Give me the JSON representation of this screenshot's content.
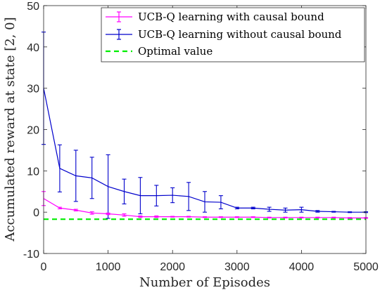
{
  "chart_data": {
    "type": "line",
    "xlabel": "Number of Episodes",
    "ylabel": "Accumulated reward at state [2, 0]",
    "xlim": [
      0,
      5000
    ],
    "ylim": [
      -10,
      50
    ],
    "xticks": [
      "0",
      "1000",
      "2000",
      "3000",
      "4000",
      "5000"
    ],
    "yticks": [
      "-10",
      "0",
      "10",
      "20",
      "30",
      "40",
      "50"
    ],
    "grid": false,
    "legend_position": "top-right",
    "series": [
      {
        "name": "UCB-Q learning with causal bound",
        "color": "#ff00ff",
        "error_bars": true,
        "x": [
          0,
          250,
          500,
          750,
          1000,
          1250,
          1500,
          1750,
          2000,
          2250,
          2500,
          2750,
          3000,
          3250,
          3500,
          3750,
          4000,
          4250,
          4500,
          4750,
          5000
        ],
        "y": [
          3.3,
          1.0,
          0.5,
          -0.2,
          -0.4,
          -0.7,
          -1.1,
          -1.1,
          -1.1,
          -1.1,
          -1.2,
          -1.2,
          -1.2,
          -1.2,
          -1.3,
          -1.3,
          -1.3,
          -1.3,
          -1.3,
          -1.4,
          -1.4
        ],
        "err": [
          1.7,
          0.2,
          0.2,
          0.3,
          0.2,
          0.3,
          0.2,
          0.2,
          0.1,
          0.1,
          0.1,
          0.1,
          0.1,
          0.1,
          0.1,
          0.1,
          0.1,
          0.1,
          0.1,
          0.1,
          0.1
        ]
      },
      {
        "name": "UCB-Q learning without causal bound",
        "color": "#0000cc",
        "error_bars": true,
        "x": [
          0,
          250,
          500,
          750,
          1000,
          1250,
          1500,
          1750,
          2000,
          2250,
          2500,
          2750,
          3000,
          3250,
          3500,
          3750,
          4000,
          4250,
          4500,
          4750,
          5000
        ],
        "y": [
          30.0,
          10.6,
          8.8,
          8.3,
          6.2,
          5.0,
          4.0,
          4.0,
          4.1,
          3.8,
          2.5,
          2.4,
          1.0,
          1.0,
          0.7,
          0.5,
          0.6,
          0.2,
          0.1,
          0.0,
          0.0
        ],
        "err": [
          13.6,
          5.7,
          6.2,
          5.0,
          7.7,
          3.0,
          4.4,
          2.5,
          1.8,
          3.4,
          2.5,
          1.6,
          0.2,
          0.2,
          0.5,
          0.5,
          0.6,
          0.2,
          0.1,
          0.1,
          0.1
        ]
      },
      {
        "name": "Optimal value",
        "color": "#00ee00",
        "dashed": true,
        "x": [
          0,
          5000
        ],
        "y": [
          -1.7,
          -1.7
        ]
      }
    ]
  }
}
